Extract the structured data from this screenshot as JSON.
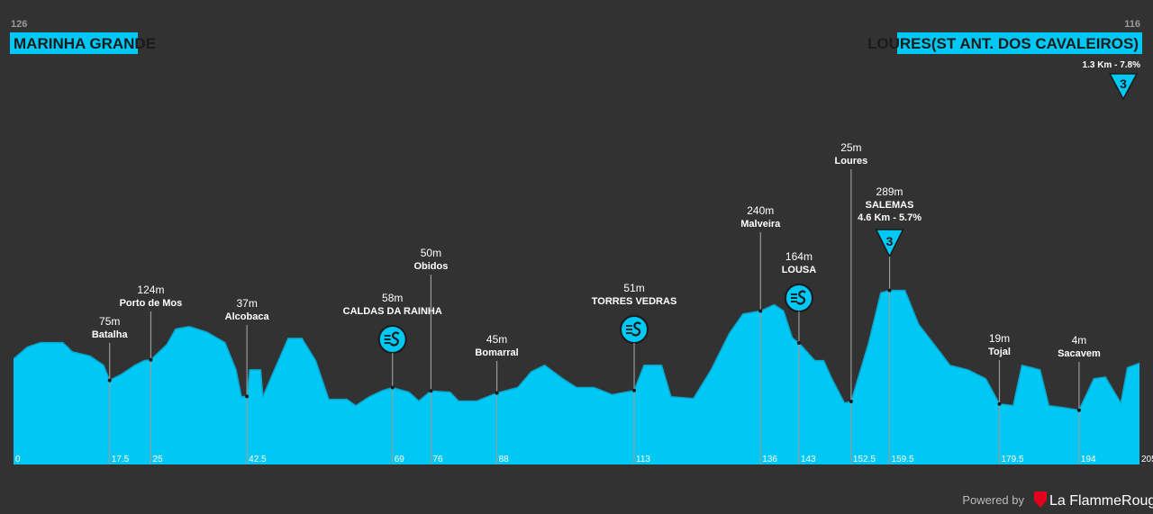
{
  "chart_data": {
    "type": "area",
    "start": {
      "elevation": 126,
      "name": "MARINHA GRANDE"
    },
    "finish": {
      "elevation": 116,
      "name": "LOURES(ST ANT. DOS CAVALEIROS)",
      "climb": "1.3 Km - 7.8%",
      "category": "3"
    },
    "color": "#00c8f5",
    "xlim": [
      0,
      205
    ],
    "ylim": [
      -125,
      300
    ],
    "xticks": [
      0,
      205
    ],
    "x": [
      0,
      2.5,
      4.9,
      9,
      10.7,
      13.9,
      16.4,
      17.5,
      19.7,
      22.1,
      23.8,
      25,
      27.9,
      29.5,
      32,
      35.2,
      38.5,
      40.5,
      41.5,
      42.5,
      43,
      45,
      45.4,
      47.5,
      50,
      52.5,
      55,
      57.4,
      60.7,
      62.3,
      64.8,
      67.2,
      69,
      72,
      73.8,
      76,
      79.5,
      81,
      84.4,
      88,
      91.8,
      94.3,
      96.7,
      100,
      102.5,
      105.7,
      109,
      113,
      114.8,
      118,
      119.7,
      123.8,
      127,
      130.3,
      132.8,
      136,
      138.5,
      140.2,
      141.8,
      143,
      145.9,
      147.5,
      149,
      151.3,
      152.5,
      155.7,
      157.9,
      159.5,
      162.3,
      164.8,
      168,
      170.5,
      173.8,
      177,
      179.5,
      182,
      183.6,
      186.9,
      188.5,
      191.8,
      194,
      196.7,
      198.8,
      201.6,
      202.8,
      205
    ],
    "values": [
      126,
      154,
      165,
      165,
      143,
      133,
      111,
      75,
      90,
      111,
      122,
      124,
      160,
      197,
      203,
      190,
      165,
      100,
      36,
      37,
      100,
      100,
      36,
      100,
      175,
      175,
      122,
      30,
      30,
      15,
      36,
      51,
      58,
      47,
      26,
      50,
      47,
      26,
      26,
      45,
      58,
      96,
      111,
      79,
      58,
      58,
      41,
      51,
      111,
      111,
      36,
      32,
      100,
      186,
      233,
      240,
      255,
      240,
      176,
      164,
      122,
      122,
      79,
      21,
      25,
      165,
      283,
      289,
      289,
      208,
      154,
      111,
      100,
      79,
      19,
      15,
      111,
      100,
      15,
      9,
      4,
      79,
      83,
      21,
      105,
      116
    ],
    "waypoints": [
      {
        "km": 17.5,
        "name": "Batalha",
        "elevation": {
          "value": 75,
          "label": "75m"
        }
      },
      {
        "km": 25,
        "name": "Porto de Mos",
        "elevation": {
          "value": 124,
          "label": "124m"
        }
      },
      {
        "km": 42.5,
        "name": "Alcobaca",
        "elevation": {
          "value": 37,
          "label": "37m"
        }
      },
      {
        "km": 69,
        "name": "CALDAS DA RAINHA",
        "elevation": {
          "value": 58,
          "label": "58m"
        },
        "marker": "sprint"
      },
      {
        "km": 76,
        "name": "Obidos",
        "elevation": {
          "value": 50,
          "label": "50m"
        }
      },
      {
        "km": 88,
        "name": "Bomarral",
        "elevation": {
          "value": 45,
          "label": "45m"
        }
      },
      {
        "km": 113,
        "name": "TORRES VEDRAS",
        "elevation": {
          "value": 51,
          "label": "51m"
        },
        "marker": "sprint"
      },
      {
        "km": 136,
        "name": "Malveira",
        "elevation": {
          "value": 240,
          "label": "240m"
        }
      },
      {
        "km": 143,
        "name": "LOUSA",
        "elevation": {
          "value": 164,
          "label": "164m"
        },
        "marker": "sprint"
      },
      {
        "km": 152.5,
        "name": "Loures",
        "elevation": {
          "value": 25,
          "label": "25m"
        }
      },
      {
        "km": 159.5,
        "name": "SALEMAS",
        "elevation": {
          "value": 289,
          "label": "289m"
        },
        "marker": "climb",
        "climb": "4.6 Km - 5.7%",
        "category": "3"
      },
      {
        "km": 179.5,
        "name": "Tojal",
        "elevation": {
          "value": 19,
          "label": "19m"
        }
      },
      {
        "km": 194,
        "name": "Sacavem",
        "elevation": {
          "value": 4,
          "label": "4m"
        }
      }
    ],
    "footer": {
      "powered": "Powered by",
      "brand": "La FlammeRouge"
    }
  }
}
